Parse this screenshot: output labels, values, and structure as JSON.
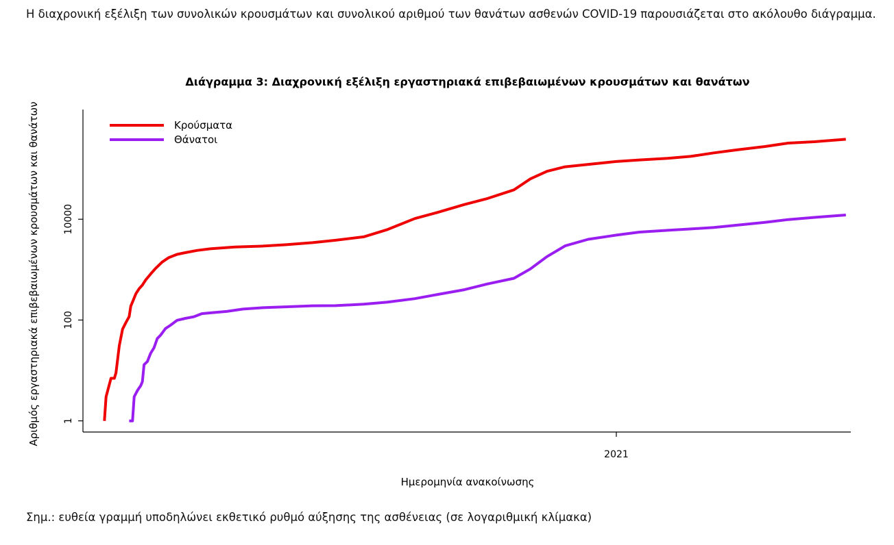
{
  "intro_text": "Η διαχρονική εξέλιξη των συνολικών κρουσμάτων και συνολικού αριθμού των θανάτων ασθενών COVID-19 παρουσιάζεται στο ακόλουθο διάγραμμα.",
  "note_text": "Σημ.: ευθεία γραμμή υποδηλώνει εκθετικό ρυθμό αύξησης της ασθένειας (σε λογαριθμική κλίμακα)",
  "chart_data": {
    "type": "line",
    "title": "Διάγραμμα 3: Διαχρονική εξέλιξη εργαστηριακά επιβεβαιωμένων κρουσμάτων και θανάτων",
    "xlabel": "Ημερομηνία ανακοίνωσης",
    "ylabel": "Αριθμός εργαστηριακά επιβεβαιωμένων κρουσμάτων και θανάτων",
    "y_scale": "log",
    "ylim": [
      0.6,
      1500000
    ],
    "y_ticks": [
      1,
      100,
      10000
    ],
    "y_tick_labels": [
      "1",
      "100",
      "10000"
    ],
    "xlim": [
      "2020-02-13",
      "2021-05-23"
    ],
    "x_ticks": [
      "2021-01-01"
    ],
    "x_tick_labels": [
      "2021"
    ],
    "grid": false,
    "legend": "top-left",
    "series": [
      {
        "name": "Κρούσματα",
        "color": "#ee0000",
        "points": [
          [
            "2020-02-26",
            1
          ],
          [
            "2020-02-27",
            3
          ],
          [
            "2020-03-01",
            7
          ],
          [
            "2020-03-03",
            7
          ],
          [
            "2020-03-04",
            9
          ],
          [
            "2020-03-06",
            31
          ],
          [
            "2020-03-08",
            66
          ],
          [
            "2020-03-10",
            89
          ],
          [
            "2020-03-12",
            117
          ],
          [
            "2020-03-13",
            190
          ],
          [
            "2020-03-14",
            228
          ],
          [
            "2020-03-16",
            331
          ],
          [
            "2020-03-18",
            418
          ],
          [
            "2020-03-20",
            495
          ],
          [
            "2020-03-22",
            624
          ],
          [
            "2020-03-25",
            821
          ],
          [
            "2020-03-28",
            1061
          ],
          [
            "2020-04-01",
            1415
          ],
          [
            "2020-04-05",
            1735
          ],
          [
            "2020-04-10",
            2011
          ],
          [
            "2020-04-15",
            2170
          ],
          [
            "2020-04-22",
            2401
          ],
          [
            "2020-04-30",
            2591
          ],
          [
            "2020-05-15",
            2819
          ],
          [
            "2020-06-01",
            2937
          ],
          [
            "2020-06-15",
            3121
          ],
          [
            "2020-07-01",
            3432
          ],
          [
            "2020-07-15",
            3826
          ],
          [
            "2020-08-01",
            4477
          ],
          [
            "2020-08-15",
            6177
          ],
          [
            "2020-09-01",
            10317
          ],
          [
            "2020-09-15",
            13730
          ],
          [
            "2020-10-01",
            19613
          ],
          [
            "2020-10-15",
            25802
          ],
          [
            "2020-10-31",
            38297
          ],
          [
            "2020-11-10",
            63321
          ],
          [
            "2020-11-20",
            89298
          ],
          [
            "2020-12-01",
            109767
          ],
          [
            "2020-12-15",
            122305
          ],
          [
            "2021-01-01",
            139447
          ],
          [
            "2021-01-15",
            149973
          ],
          [
            "2021-02-01",
            161528
          ],
          [
            "2021-02-15",
            176419
          ],
          [
            "2021-03-01",
            206962
          ],
          [
            "2021-03-15",
            237883
          ],
          [
            "2021-04-01",
            277356
          ],
          [
            "2021-04-15",
            323907
          ],
          [
            "2021-05-01",
            344741
          ],
          [
            "2021-05-20",
            385543
          ]
        ]
      },
      {
        "name": "Θάνατοι",
        "color": "#9a1ef0",
        "points": [
          [
            "2020-03-12",
            1
          ],
          [
            "2020-03-14",
            1
          ],
          [
            "2020-03-15",
            3
          ],
          [
            "2020-03-17",
            4
          ],
          [
            "2020-03-19",
            5
          ],
          [
            "2020-03-20",
            6
          ],
          [
            "2020-03-21",
            13
          ],
          [
            "2020-03-23",
            15
          ],
          [
            "2020-03-25",
            22
          ],
          [
            "2020-03-27",
            28
          ],
          [
            "2020-03-29",
            43
          ],
          [
            "2020-03-31",
            50
          ],
          [
            "2020-04-03",
            68
          ],
          [
            "2020-04-06",
            79
          ],
          [
            "2020-04-10",
            99
          ],
          [
            "2020-04-15",
            108
          ],
          [
            "2020-04-20",
            116
          ],
          [
            "2020-04-25",
            134
          ],
          [
            "2020-05-01",
            140
          ],
          [
            "2020-05-10",
            148
          ],
          [
            "2020-05-20",
            165
          ],
          [
            "2020-06-01",
            176
          ],
          [
            "2020-06-15",
            183
          ],
          [
            "2020-07-01",
            192
          ],
          [
            "2020-07-15",
            193
          ],
          [
            "2020-08-01",
            206
          ],
          [
            "2020-08-15",
            226
          ],
          [
            "2020-09-01",
            266
          ],
          [
            "2020-09-15",
            322
          ],
          [
            "2020-10-01",
            400
          ],
          [
            "2020-10-15",
            520
          ],
          [
            "2020-10-31",
            673
          ],
          [
            "2020-11-10",
            1035
          ],
          [
            "2020-11-20",
            1815
          ],
          [
            "2020-12-01",
            2962
          ],
          [
            "2020-12-15",
            3997
          ],
          [
            "2021-01-01",
            4838
          ],
          [
            "2021-01-15",
            5558
          ],
          [
            "2021-02-01",
            6030
          ],
          [
            "2021-02-15",
            6410
          ],
          [
            "2021-03-01",
            6878
          ],
          [
            "2021-03-15",
            7627
          ],
          [
            "2021-04-01",
            8667
          ],
          [
            "2021-04-15",
            9840
          ],
          [
            "2021-05-01",
            10890
          ],
          [
            "2021-05-20",
            12145
          ]
        ]
      }
    ]
  }
}
